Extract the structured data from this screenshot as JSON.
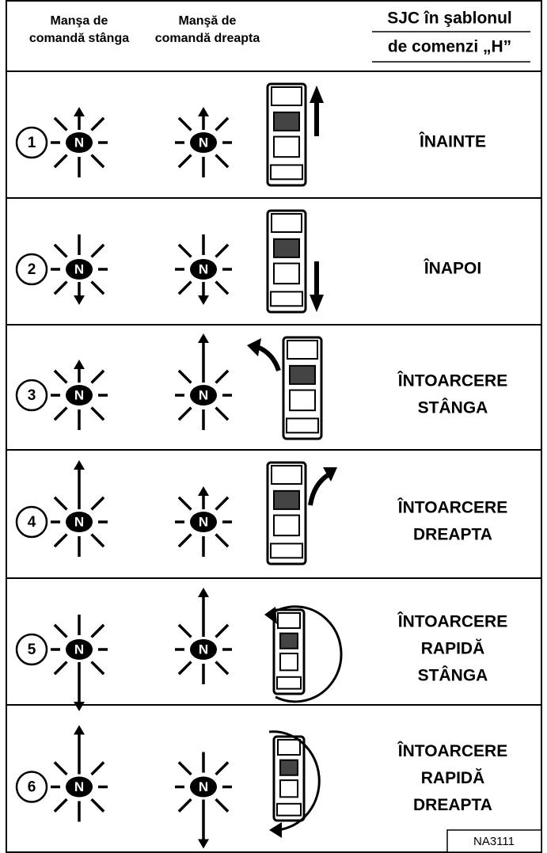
{
  "header": {
    "left": [
      "Manşa de",
      "comandă stânga"
    ],
    "right": [
      "Manşă de",
      "comandă dreapta"
    ],
    "sjc": [
      "SJC în şablonul",
      "de comenzi „H”"
    ]
  },
  "rows": [
    {
      "number": 1,
      "left_knob": "N",
      "right_knob": "N",
      "label": [
        "ÎNAINTE"
      ]
    },
    {
      "number": 2,
      "left_knob": "N",
      "right_knob": "N",
      "label": [
        "ÎNAPOI"
      ]
    },
    {
      "number": 3,
      "left_knob": "N",
      "right_knob": "N",
      "label": [
        "ÎNTOARCERE",
        "STÂNGA"
      ]
    },
    {
      "number": 4,
      "left_knob": "N",
      "right_knob": "N",
      "label": [
        "ÎNTOARCERE",
        "DREAPTA"
      ]
    },
    {
      "number": 5,
      "left_knob": "N",
      "right_knob": "N",
      "label": [
        "ÎNTOARCERE",
        "RAPIDĂ",
        "STÂNGA"
      ]
    },
    {
      "number": 6,
      "left_knob": "N",
      "right_knob": "N",
      "label": [
        "ÎNTOARCERE",
        "RAPIDĂ",
        "DREAPTA"
      ]
    }
  ],
  "code": "NA3111"
}
